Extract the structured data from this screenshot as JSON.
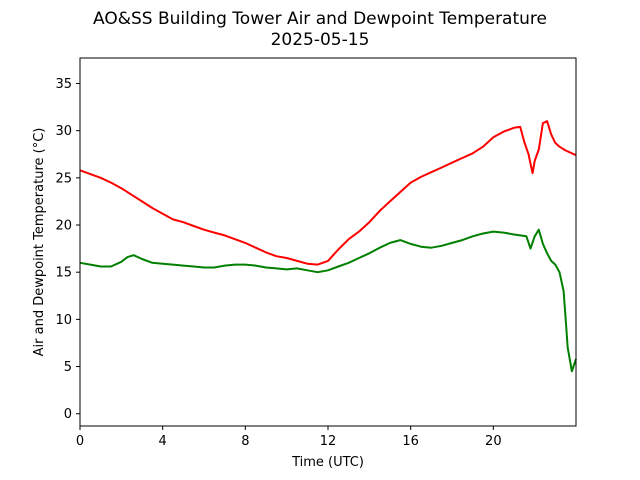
{
  "chart_data": {
    "type": "line",
    "title": "AO&SS Building Tower Air and Dewpoint Temperature",
    "subtitle": "2025-05-15",
    "xlabel": "Time (UTC)",
    "ylabel": "Air and Dewpoint Temperature (°C)",
    "xlim": [
      0,
      24
    ],
    "ylim": [
      -1.3,
      37.7
    ],
    "xticks": [
      0,
      4,
      8,
      12,
      16,
      20
    ],
    "yticks": [
      0,
      5,
      10,
      15,
      20,
      25,
      30,
      35
    ],
    "grid": false,
    "legend": "none",
    "series": [
      {
        "color": "#ff0000",
        "x": [
          0,
          0.5,
          1,
          1.5,
          2,
          2.5,
          3,
          3.5,
          4,
          4.5,
          5,
          5.5,
          6,
          6.5,
          7,
          7.5,
          8,
          8.5,
          9,
          9.5,
          10,
          10.5,
          11,
          11.5,
          12,
          12.5,
          13,
          13.5,
          14,
          14.5,
          15,
          15.5,
          16,
          16.5,
          17,
          17.5,
          18,
          18.5,
          19,
          19.5,
          20,
          20.5,
          21,
          21.3,
          21.5,
          21.7,
          21.8,
          21.9,
          22,
          22.2,
          22.4,
          22.6,
          22.8,
          23,
          23.2,
          23.5,
          24
        ],
        "y": [
          25.8,
          25.4,
          25.0,
          24.5,
          23.9,
          23.2,
          22.5,
          21.8,
          21.2,
          20.6,
          20.3,
          19.9,
          19.5,
          19.2,
          18.9,
          18.5,
          18.1,
          17.6,
          17.1,
          16.7,
          16.5,
          16.2,
          15.9,
          15.8,
          16.2,
          17.4,
          18.5,
          19.3,
          20.3,
          21.5,
          22.5,
          23.5,
          24.5,
          25.1,
          25.6,
          26.1,
          26.6,
          27.1,
          27.6,
          28.3,
          29.3,
          29.9,
          30.3,
          30.4,
          28.8,
          27.5,
          26.5,
          25.5,
          26.8,
          28.0,
          30.8,
          31.0,
          29.6,
          28.7,
          28.3,
          27.9,
          27.4
        ]
      },
      {
        "color": "#008000",
        "x": [
          0,
          0.5,
          1,
          1.5,
          2,
          2.3,
          2.6,
          3,
          3.5,
          4,
          4.5,
          5,
          5.5,
          6,
          6.5,
          7,
          7.5,
          8,
          8.5,
          9,
          9.5,
          10,
          10.5,
          11,
          11.5,
          12,
          12.5,
          13,
          13.5,
          14,
          14.5,
          15,
          15.5,
          16,
          16.5,
          17,
          17.5,
          18,
          18.5,
          19,
          19.5,
          20,
          20.5,
          21,
          21.3,
          21.6,
          21.8,
          22,
          22.2,
          22.4,
          22.6,
          22.8,
          23,
          23.2,
          23.4,
          23.5,
          23.6,
          23.8,
          24
        ],
        "y": [
          16.0,
          15.8,
          15.6,
          15.6,
          16.1,
          16.6,
          16.8,
          16.4,
          16.0,
          15.9,
          15.8,
          15.7,
          15.6,
          15.5,
          15.5,
          15.7,
          15.8,
          15.8,
          15.7,
          15.5,
          15.4,
          15.3,
          15.4,
          15.2,
          15.0,
          15.2,
          15.6,
          16.0,
          16.5,
          17.0,
          17.6,
          18.1,
          18.4,
          18.0,
          17.7,
          17.6,
          17.8,
          18.1,
          18.4,
          18.8,
          19.1,
          19.3,
          19.2,
          19.0,
          18.9,
          18.8,
          17.5,
          18.8,
          19.5,
          18.0,
          17.0,
          16.2,
          15.8,
          15.0,
          13.0,
          10.0,
          7.0,
          4.5,
          5.8
        ]
      }
    ]
  }
}
